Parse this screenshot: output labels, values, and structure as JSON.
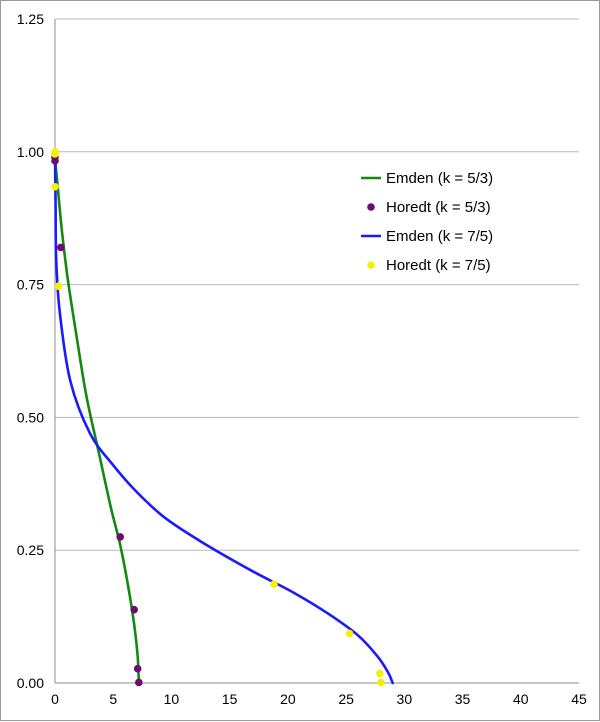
{
  "chart_data": {
    "type": "line",
    "title": "",
    "xlabel": "",
    "ylabel": "",
    "xlim": [
      0,
      45
    ],
    "ylim": [
      0,
      1.25
    ],
    "x_ticks": [
      "0",
      "5",
      "10",
      "15",
      "20",
      "25",
      "30",
      "35",
      "40",
      "45"
    ],
    "y_ticks": [
      "0.00",
      "0.25",
      "0.50",
      "0.75",
      "1.00",
      "1.25"
    ],
    "grid": "horizontal",
    "legend_position": "upper-right",
    "series": [
      {
        "name": "Emden (k = 5/3)",
        "kind": "line",
        "color": "#138a0f",
        "points": [
          [
            0,
            1.0
          ],
          [
            0.08,
            0.97
          ],
          [
            0.25,
            0.93
          ],
          [
            0.6,
            0.85
          ],
          [
            1.1,
            0.76
          ],
          [
            1.8,
            0.66
          ],
          [
            2.7,
            0.54
          ],
          [
            3.8,
            0.43
          ],
          [
            4.8,
            0.33
          ],
          [
            5.6,
            0.26
          ],
          [
            6.3,
            0.18
          ],
          [
            6.8,
            0.11
          ],
          [
            7.1,
            0.05
          ],
          [
            7.2,
            0.0
          ]
        ]
      },
      {
        "name": "Horedt (k = 5/3)",
        "kind": "scatter",
        "color": "#6a0d6e",
        "points": [
          [
            0.0,
            0.99
          ],
          [
            0.0,
            0.983
          ],
          [
            0.5,
            0.82
          ],
          [
            5.6,
            0.275
          ],
          [
            6.8,
            0.138
          ],
          [
            7.1,
            0.027
          ],
          [
            7.2,
            0.001
          ]
        ]
      },
      {
        "name": "Emden (k = 7/5)",
        "kind": "line",
        "color": "#1a1aff",
        "points": [
          [
            0,
            1.0
          ],
          [
            0.05,
            0.9
          ],
          [
            0.1,
            0.8
          ],
          [
            0.4,
            0.7
          ],
          [
            1.3,
            0.57
          ],
          [
            3.0,
            0.47
          ],
          [
            5.0,
            0.41
          ],
          [
            7.0,
            0.36
          ],
          [
            9.5,
            0.31
          ],
          [
            13.0,
            0.26
          ],
          [
            17.0,
            0.21
          ],
          [
            20.5,
            0.17
          ],
          [
            23.5,
            0.13
          ],
          [
            26.0,
            0.09
          ],
          [
            27.7,
            0.05
          ],
          [
            28.6,
            0.02
          ],
          [
            29.0,
            0.0
          ]
        ]
      },
      {
        "name": "Horedt (k = 7/5)",
        "kind": "scatter",
        "color": "#f2f200",
        "points": [
          [
            0.0,
            1.0
          ],
          [
            0.0,
            0.996
          ],
          [
            0.0,
            0.934
          ],
          [
            0.3,
            0.747
          ],
          [
            18.8,
            0.186
          ],
          [
            25.3,
            0.093
          ],
          [
            27.9,
            0.018
          ],
          [
            28.0,
            0.001
          ]
        ]
      }
    ]
  }
}
